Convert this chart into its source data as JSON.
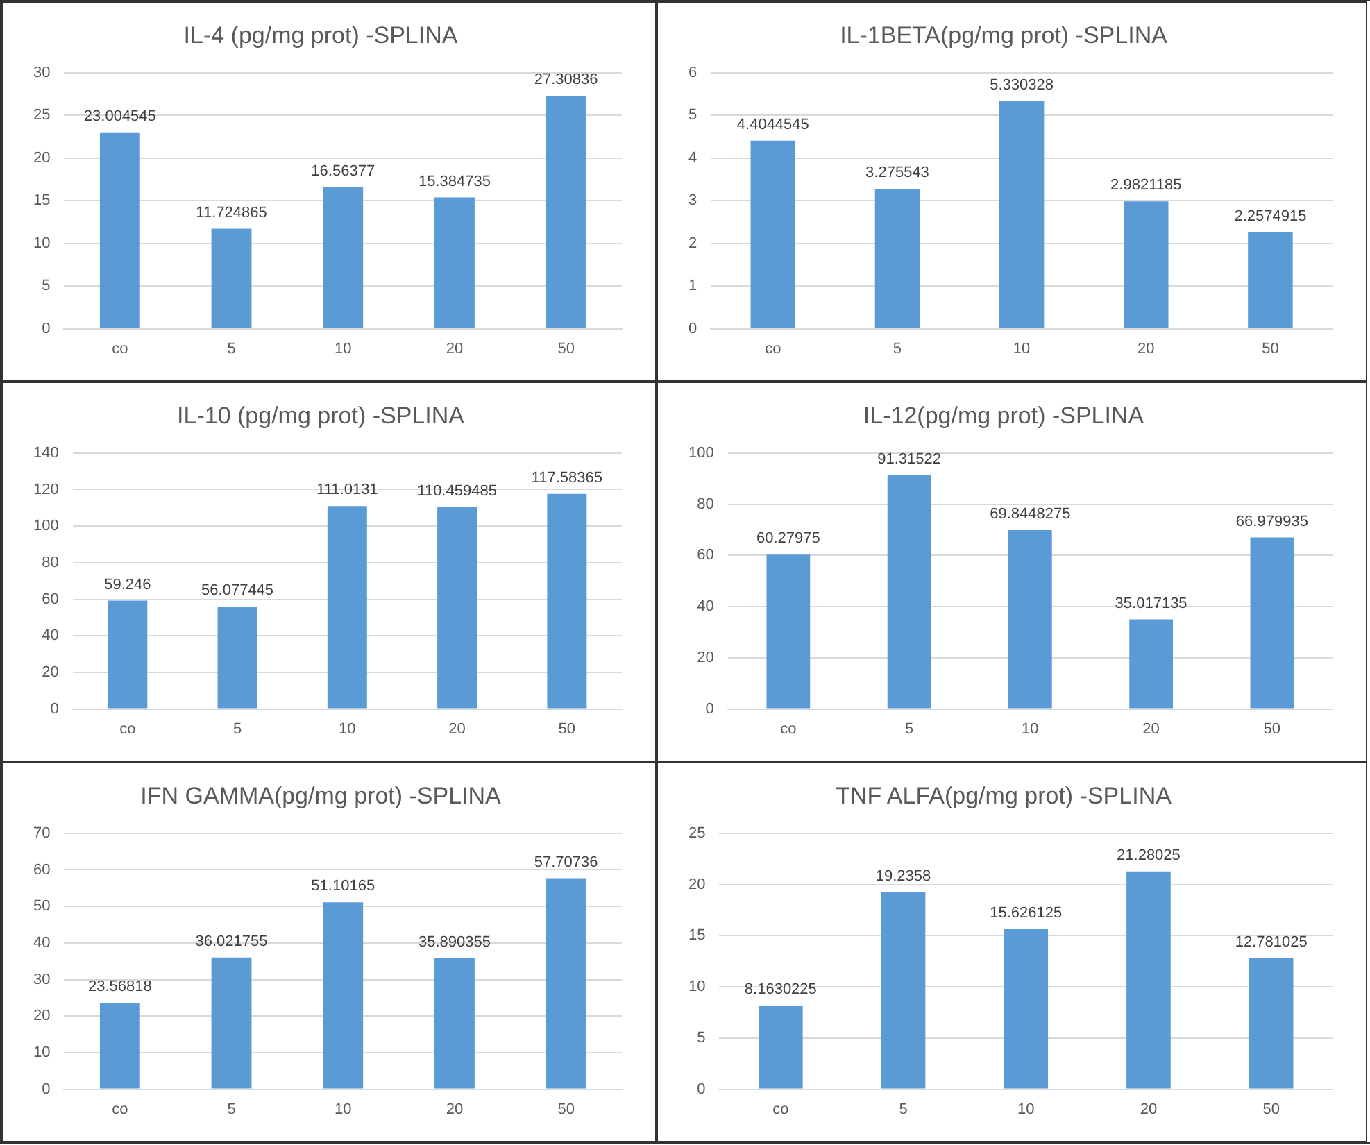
{
  "chart_data": [
    {
      "type": "bar",
      "title": "IL-4 (pg/mg prot) -SPLINA",
      "categories": [
        "co",
        "5",
        "10",
        "20",
        "50"
      ],
      "values": [
        23.004545,
        11.724865,
        16.56377,
        15.384735,
        27.30836
      ],
      "color": "#5b9bd5",
      "ylim": [
        0,
        30
      ],
      "yticks": [
        0,
        5,
        10,
        15,
        20,
        25,
        30
      ],
      "grid": "y",
      "data_labels": true
    },
    {
      "type": "bar",
      "title": "IL-1BETA(pg/mg prot) -SPLINA",
      "categories": [
        "co",
        "5",
        "10",
        "20",
        "50"
      ],
      "values": [
        4.4044545,
        3.275543,
        5.330328,
        2.9821185,
        2.2574915
      ],
      "color": "#5b9bd5",
      "ylim": [
        0,
        6
      ],
      "yticks": [
        0,
        1,
        2,
        3,
        4,
        5,
        6
      ],
      "grid": "y",
      "data_labels": true
    },
    {
      "type": "bar",
      "title": "IL-10 (pg/mg prot) -SPLINA",
      "categories": [
        "co",
        "5",
        "10",
        "20",
        "50"
      ],
      "values": [
        59.246,
        56.077445,
        111.0131,
        110.459485,
        117.58365
      ],
      "color": "#5b9bd5",
      "ylim": [
        0,
        140
      ],
      "yticks": [
        0,
        20,
        40,
        60,
        80,
        100,
        120,
        140
      ],
      "grid": "y",
      "data_labels": true
    },
    {
      "type": "bar",
      "title": "IL-12(pg/mg prot) -SPLINA",
      "categories": [
        "co",
        "5",
        "10",
        "20",
        "50"
      ],
      "values": [
        60.27975,
        91.31522,
        69.8448275,
        35.017135,
        66.979935
      ],
      "color": "#5b9bd5",
      "ylim": [
        0,
        100
      ],
      "yticks": [
        0,
        20,
        40,
        60,
        80,
        100
      ],
      "grid": "y",
      "data_labels": true
    },
    {
      "type": "bar",
      "title": "IFN GAMMA(pg/mg prot) -SPLINA",
      "categories": [
        "co",
        "5",
        "10",
        "20",
        "50"
      ],
      "values": [
        23.56818,
        36.021755,
        51.10165,
        35.890355,
        57.70736
      ],
      "color": "#5b9bd5",
      "ylim": [
        0,
        70
      ],
      "yticks": [
        0,
        10,
        20,
        30,
        40,
        50,
        60,
        70
      ],
      "grid": "y",
      "data_labels": true
    },
    {
      "type": "bar",
      "title": "TNF ALFA(pg/mg prot) -SPLINA",
      "categories": [
        "co",
        "5",
        "10",
        "20",
        "50"
      ],
      "values": [
        8.1630225,
        19.2358,
        15.626125,
        21.28025,
        12.781025
      ],
      "color": "#5b9bd5",
      "ylim": [
        0,
        25
      ],
      "yticks": [
        0,
        5,
        10,
        15,
        20,
        25
      ],
      "grid": "y",
      "data_labels": true
    }
  ]
}
